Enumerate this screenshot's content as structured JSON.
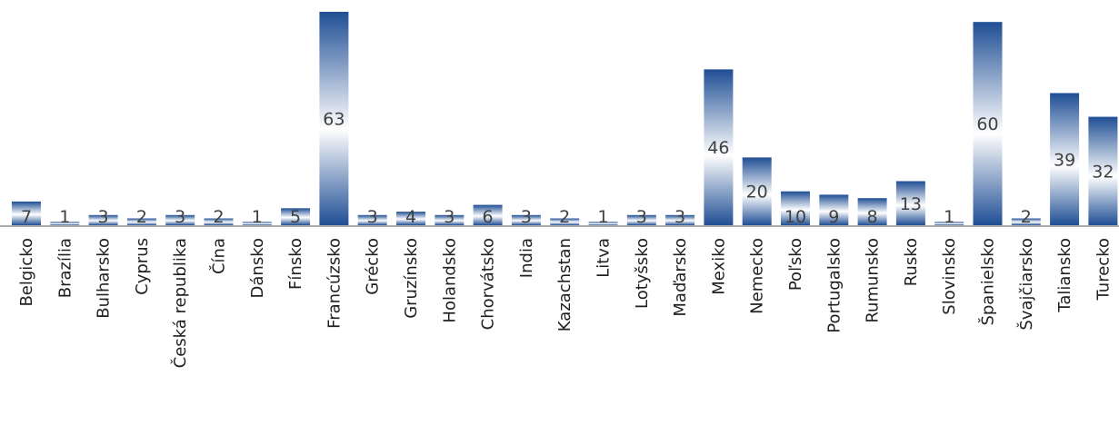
{
  "chart_data": {
    "type": "bar",
    "categories": [
      "Belgicko",
      "Brazília",
      "Bulharsko",
      "Cyprus",
      "Česká republika",
      "Čína",
      "Dánsko",
      "Fínsko",
      "Francúzsko",
      "Grécko",
      "Gruzínsko",
      "Holandsko",
      "Chorvátsko",
      "India",
      "Kazachstan",
      "Litva",
      "Lotyšsko",
      "Maďarsko",
      "Mexiko",
      "Nemecko",
      "Poľsko",
      "Portugalsko",
      "Rumunsko",
      "Rusko",
      "Slovinsko",
      "Španielsko",
      "Švajčiarsko",
      "Taliansko",
      "Turecko"
    ],
    "values": [
      7,
      1,
      3,
      2,
      3,
      2,
      1,
      5,
      63,
      3,
      4,
      3,
      6,
      3,
      2,
      1,
      3,
      3,
      46,
      20,
      10,
      9,
      8,
      13,
      1,
      60,
      2,
      39,
      32
    ],
    "title": "",
    "xlabel": "",
    "ylabel": "",
    "ylim": [
      0,
      63
    ],
    "grid": false,
    "legend": "none",
    "colors": {
      "bar_dark": "#1f4e94",
      "bar_light": "#ffffff",
      "label": "#404040",
      "axis": "#595959"
    }
  }
}
